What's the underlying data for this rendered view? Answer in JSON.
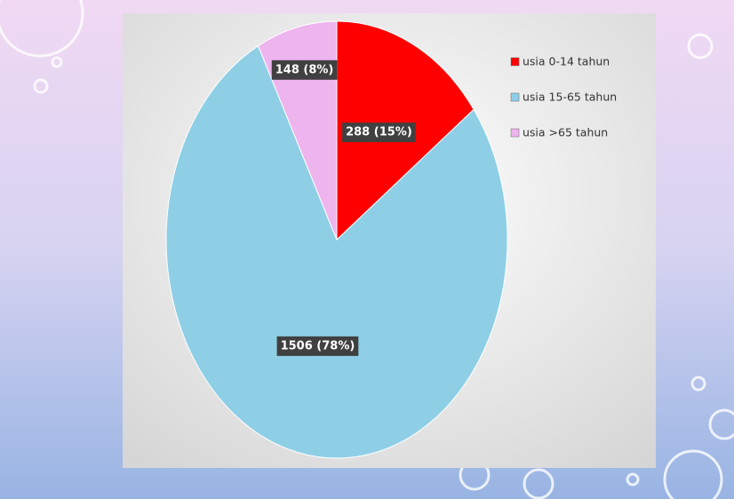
{
  "chart_data": {
    "type": "pie",
    "categories": [
      "usia 0-14 tahun",
      "usia 15-65 tahun",
      "usia >65 tahun"
    ],
    "values": [
      288,
      1506,
      148
    ],
    "value_labels": [
      "288 (15%)",
      "1506 (78%)",
      "148 (8%)"
    ],
    "colors": [
      "#ff0000",
      "#8ecfe6",
      "#eeb4ee"
    ],
    "legend": "right"
  }
}
